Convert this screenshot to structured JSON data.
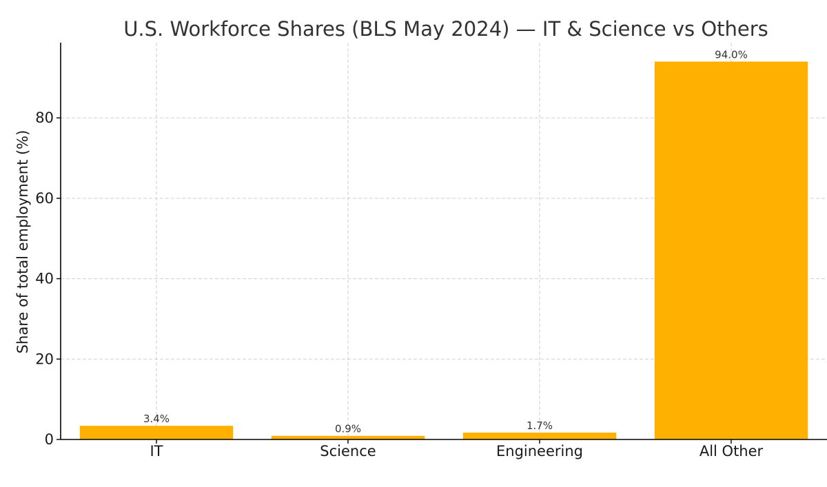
{
  "chart_data": {
    "type": "bar",
    "title": "U.S. Workforce Shares (BLS May 2024) — IT & Science vs Others",
    "xlabel": "",
    "ylabel": "Share of total employment (%)",
    "categories": [
      "IT",
      "Science",
      "Engineering",
      "All Other"
    ],
    "values": [
      3.4,
      0.9,
      1.7,
      94.0
    ],
    "data_labels": [
      "3.4%",
      "0.9%",
      "1.7%",
      "94.0%"
    ],
    "yticks": [
      0,
      20,
      40,
      60,
      80
    ],
    "ylim": [
      0,
      98.7
    ],
    "grid": true,
    "bar_color": "#FFB000"
  }
}
